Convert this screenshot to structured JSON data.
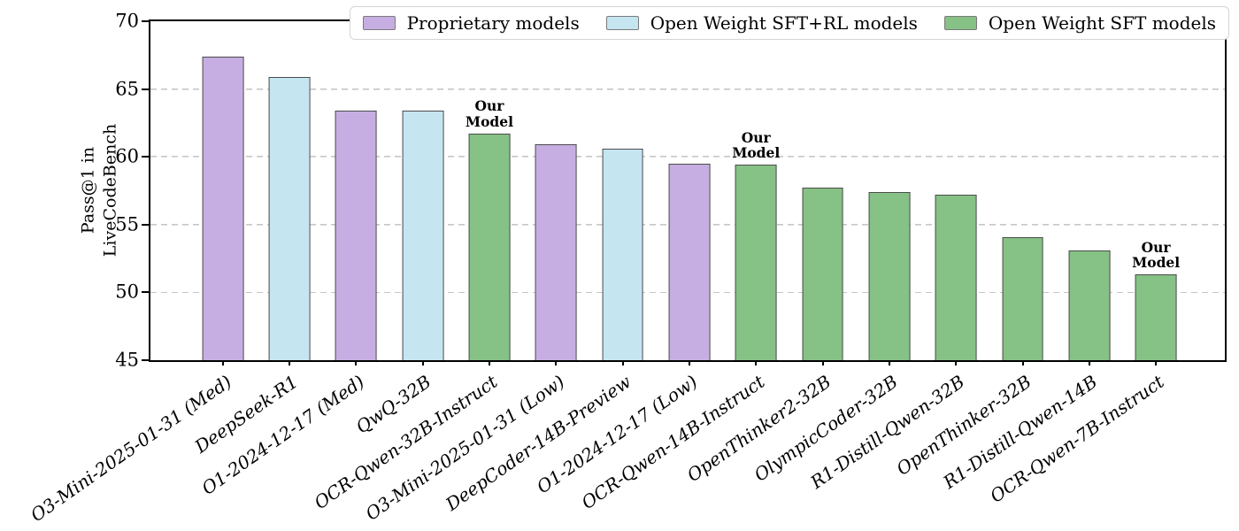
{
  "chart_data": {
    "type": "bar",
    "title": "",
    "ylabel": "Pass@1 in\nLiveCodeBench",
    "ylim": [
      45,
      70
    ],
    "yticks": [
      70,
      65,
      60,
      55,
      50,
      45
    ],
    "gridlines": [
      65,
      60,
      55,
      50
    ],
    "grid_style": "dashed-horizontal",
    "legend_position": "top-right-inside",
    "bar_edge_color": "#4c4c4c",
    "categories": [
      "O3-Mini-2025-01-31 (Med)",
      "DeepSeek-R1",
      "O1-2024-12-17 (Med)",
      "QwQ-32B",
      "OCR-Qwen-32B-Instruct",
      "O3-Mini-2025-01-31 (Low)",
      "DeepCoder-14B-Preview",
      "O1-2024-12-17 (Low)",
      "OCR-Qwen-14B-Instruct",
      "OpenThinker2-32B",
      "OlympicCoder-32B",
      "R1-Distill-Qwen-32B",
      "OpenThinker-32B",
      "R1-Distill-Qwen-14B",
      "OCR-Qwen-7B-Instruct"
    ],
    "values": [
      67.4,
      65.9,
      63.4,
      63.4,
      61.7,
      60.9,
      60.6,
      59.5,
      59.4,
      57.7,
      57.4,
      57.2,
      54.1,
      53.1,
      51.3
    ],
    "groups": [
      "proprietary",
      "sft_rl",
      "proprietary",
      "sft_rl",
      "sft",
      "proprietary",
      "sft_rl",
      "proprietary",
      "sft",
      "sft",
      "sft",
      "sft",
      "sft",
      "sft",
      "sft"
    ],
    "legend": [
      {
        "key": "proprietary",
        "label": "Proprietary models",
        "color": "#c7aee2"
      },
      {
        "key": "sft_rl",
        "label": "Open Weight SFT+RL models",
        "color": "#c5e5f1"
      },
      {
        "key": "sft",
        "label": "Open Weight SFT models",
        "color": "#86c185"
      }
    ],
    "annotations": [
      {
        "index": 4,
        "text": "Our\nModel"
      },
      {
        "index": 8,
        "text": "Our\nModel"
      },
      {
        "index": 14,
        "text": "Our\nModel"
      }
    ]
  }
}
